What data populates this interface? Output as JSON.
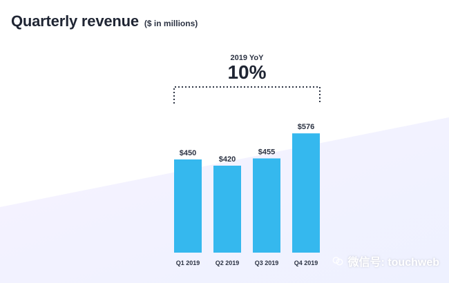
{
  "header": {
    "title": "Quarterly revenue",
    "subtitle": "($ in millions)"
  },
  "watermark": {
    "text": "微信号: touchweb",
    "icon": "wechat-icon"
  },
  "colors": {
    "bar": "#35b8ee",
    "title": "#1f2533",
    "text": "#2b3242",
    "bracket": "#2b3242",
    "bg_tint": "#f2efff"
  },
  "chart_data": {
    "type": "bar",
    "categories": [
      "Q1 2019",
      "Q2 2019",
      "Q3 2019",
      "Q4 2019"
    ],
    "values": [
      450,
      420,
      455,
      576
    ],
    "value_labels": [
      "$450",
      "$420",
      "$455",
      "$576"
    ],
    "title": "Quarterly revenue",
    "subtitle": "($ in millions)",
    "xlabel": "",
    "ylabel": "",
    "ylim": [
      0,
      600
    ],
    "grid": false,
    "legend": "none",
    "annotations": [
      {
        "label": "2019 YoY",
        "value": "10%"
      }
    ]
  }
}
